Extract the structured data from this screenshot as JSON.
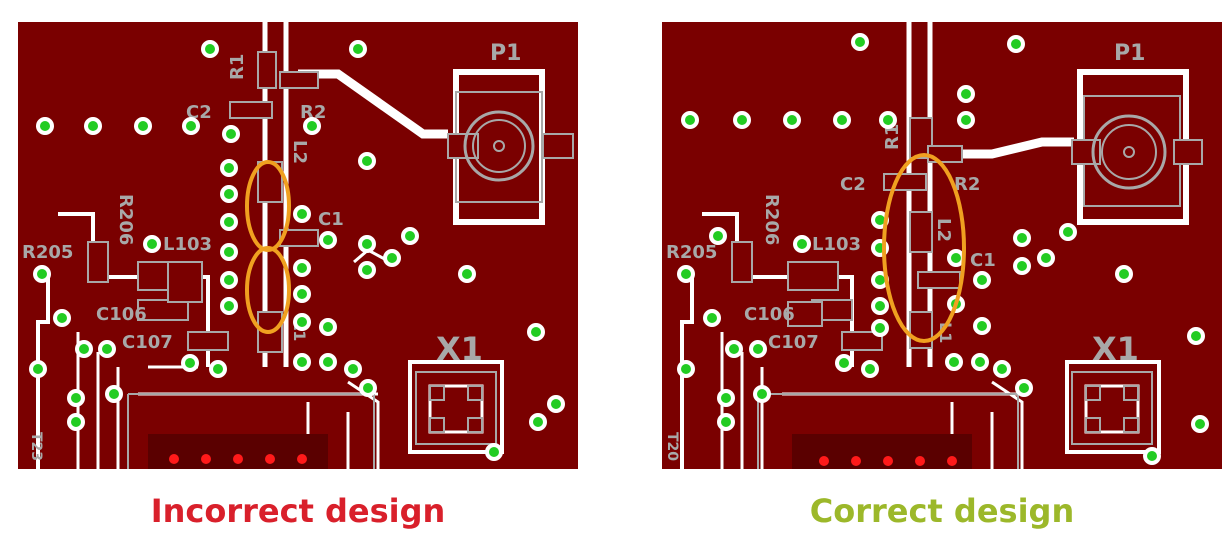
{
  "colors": {
    "board": "#7a0000",
    "copper_trace": "#ffffff",
    "silkscreen": "#a8a8a8",
    "via": "#22cc22",
    "pad_red": "#ff1a1a",
    "highlight": "#f0a020",
    "incorrect": "#d9202b",
    "correct": "#9cb82a"
  },
  "panels": [
    {
      "caption": "Incorrect design",
      "labels": {
        "p1": "P1",
        "r1": "R1",
        "r2": "R2",
        "c2": "C2",
        "l2": "L2",
        "c1": "C1",
        "r206": "R206",
        "r205": "R205",
        "l103": "L103",
        "c106": "C106",
        "c107": "C107",
        "x1": "X1",
        "l1": "L1",
        "edge": "T23"
      }
    },
    {
      "caption": "Correct design",
      "labels": {
        "p1": "P1",
        "r1": "R1",
        "r2": "R2",
        "c2": "C2",
        "l2": "L2",
        "c1": "C1",
        "r206": "R206",
        "r205": "R205",
        "l103": "L103",
        "c106": "C106",
        "c107": "C107",
        "x1": "X1",
        "l1": "L1",
        "edge": "T20"
      }
    }
  ]
}
